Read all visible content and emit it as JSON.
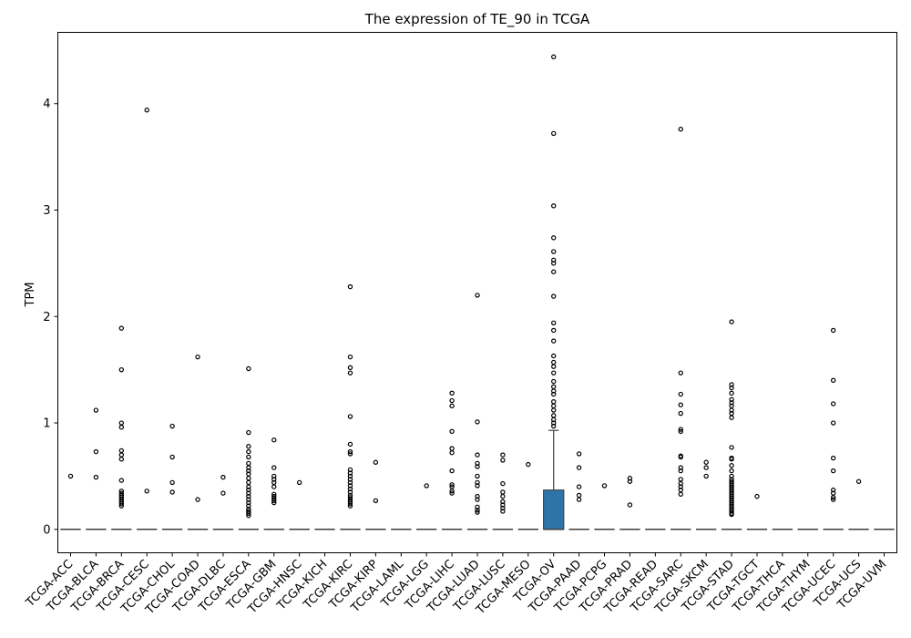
{
  "chart_data": {
    "type": "boxplot",
    "title": "The expression of TE_90 in TCGA",
    "xlabel": "",
    "ylabel": "TPM",
    "ylim": [
      -0.22,
      4.67
    ],
    "yticks": [
      0,
      1,
      2,
      3,
      4
    ],
    "grid": false,
    "legend": "none",
    "box_color": "#2e74a6",
    "categories": [
      "TCGA-ACC",
      "TCGA-BLCA",
      "TCGA-BRCA",
      "TCGA-CESC",
      "TCGA-CHOL",
      "TCGA-COAD",
      "TCGA-DLBC",
      "TCGA-ESCA",
      "TCGA-GBM",
      "TCGA-HNSC",
      "TCGA-KICH",
      "TCGA-KIRC",
      "TCGA-KIRP",
      "TCGA-LAML",
      "TCGA-LGG",
      "TCGA-LIHC",
      "TCGA-LUAD",
      "TCGA-LUSC",
      "TCGA-MESO",
      "TCGA-OV",
      "TCGA-PAAD",
      "TCGA-PCPG",
      "TCGA-PRAD",
      "TCGA-READ",
      "TCGA-SARC",
      "TCGA-SKCM",
      "TCGA-STAD",
      "TCGA-TGCT",
      "TCGA-THCA",
      "TCGA-THYM",
      "TCGA-UCEC",
      "TCGA-UCS",
      "TCGA-UVM"
    ],
    "series": [
      {
        "category": "TCGA-ACC",
        "q1": 0,
        "median": 0,
        "q3": 0,
        "whisker_low": 0,
        "whisker_high": 0,
        "outliers": [
          0.5
        ]
      },
      {
        "category": "TCGA-BLCA",
        "q1": 0,
        "median": 0,
        "q3": 0,
        "whisker_low": 0,
        "whisker_high": 0,
        "outliers": [
          1.12,
          0.73,
          0.49
        ]
      },
      {
        "category": "TCGA-BRCA",
        "q1": 0,
        "median": 0,
        "q3": 0,
        "whisker_low": 0,
        "whisker_high": 0,
        "outliers": [
          1.89,
          1.5,
          1.0,
          0.96,
          0.74,
          0.7,
          0.66,
          0.46,
          0.36,
          0.34,
          0.32,
          0.3,
          0.28,
          0.26,
          0.24,
          0.22
        ]
      },
      {
        "category": "TCGA-CESC",
        "q1": 0,
        "median": 0,
        "q3": 0,
        "whisker_low": 0,
        "whisker_high": 0,
        "outliers": [
          3.94,
          0.36
        ]
      },
      {
        "category": "TCGA-CHOL",
        "q1": 0,
        "median": 0,
        "q3": 0,
        "whisker_low": 0,
        "whisker_high": 0,
        "outliers": [
          0.97,
          0.68,
          0.44,
          0.35
        ]
      },
      {
        "category": "TCGA-COAD",
        "q1": 0,
        "median": 0,
        "q3": 0,
        "whisker_low": 0,
        "whisker_high": 0,
        "outliers": [
          1.62,
          0.28
        ]
      },
      {
        "category": "TCGA-DLBC",
        "q1": 0,
        "median": 0,
        "q3": 0,
        "whisker_low": 0,
        "whisker_high": 0,
        "outliers": [
          0.49,
          0.34
        ]
      },
      {
        "category": "TCGA-ESCA",
        "q1": 0,
        "median": 0,
        "q3": 0,
        "whisker_low": 0,
        "whisker_high": 0,
        "outliers": [
          1.51,
          0.91,
          0.78,
          0.73,
          0.68,
          0.62,
          0.58,
          0.55,
          0.52,
          0.48,
          0.44,
          0.4,
          0.37,
          0.34,
          0.31,
          0.28,
          0.25,
          0.22,
          0.19,
          0.17,
          0.15,
          0.13
        ]
      },
      {
        "category": "TCGA-GBM",
        "q1": 0,
        "median": 0,
        "q3": 0,
        "whisker_low": 0,
        "whisker_high": 0,
        "outliers": [
          0.84,
          0.58,
          0.5,
          0.47,
          0.44,
          0.4,
          0.33,
          0.31,
          0.29,
          0.27,
          0.25
        ]
      },
      {
        "category": "TCGA-HNSC",
        "q1": 0,
        "median": 0,
        "q3": 0,
        "whisker_low": 0,
        "whisker_high": 0,
        "outliers": [
          0.44
        ]
      },
      {
        "category": "TCGA-KICH",
        "q1": 0,
        "median": 0,
        "q3": 0,
        "whisker_low": 0,
        "whisker_high": 0,
        "outliers": []
      },
      {
        "category": "TCGA-KIRC",
        "q1": 0,
        "median": 0,
        "q3": 0,
        "whisker_low": 0,
        "whisker_high": 0,
        "outliers": [
          2.28,
          1.62,
          1.52,
          1.47,
          1.06,
          0.8,
          0.73,
          0.71,
          0.56,
          0.53,
          0.5,
          0.47,
          0.44,
          0.41,
          0.38,
          0.35,
          0.32,
          0.3,
          0.28,
          0.26,
          0.24,
          0.22
        ]
      },
      {
        "category": "TCGA-KIRP",
        "q1": 0,
        "median": 0,
        "q3": 0,
        "whisker_low": 0,
        "whisker_high": 0,
        "outliers": [
          0.63,
          0.27
        ]
      },
      {
        "category": "TCGA-LAML",
        "q1": 0,
        "median": 0,
        "q3": 0,
        "whisker_low": 0,
        "whisker_high": 0,
        "outliers": []
      },
      {
        "category": "TCGA-LGG",
        "q1": 0,
        "median": 0,
        "q3": 0,
        "whisker_low": 0,
        "whisker_high": 0,
        "outliers": [
          0.41
        ]
      },
      {
        "category": "TCGA-LIHC",
        "q1": 0,
        "median": 0,
        "q3": 0,
        "whisker_low": 0,
        "whisker_high": 0,
        "outliers": [
          1.28,
          1.21,
          1.16,
          0.92,
          0.76,
          0.72,
          0.55,
          0.42,
          0.4,
          0.36,
          0.34
        ]
      },
      {
        "category": "TCGA-LUAD",
        "q1": 0,
        "median": 0,
        "q3": 0,
        "whisker_low": 0,
        "whisker_high": 0,
        "outliers": [
          2.2,
          1.01,
          0.7,
          0.62,
          0.59,
          0.5,
          0.44,
          0.41,
          0.31,
          0.28,
          0.21,
          0.18,
          0.16
        ]
      },
      {
        "category": "TCGA-LUSC",
        "q1": 0,
        "median": 0,
        "q3": 0,
        "whisker_low": 0,
        "whisker_high": 0,
        "outliers": [
          0.7,
          0.65,
          0.43,
          0.35,
          0.31,
          0.26,
          0.23,
          0.2,
          0.17
        ]
      },
      {
        "category": "TCGA-MESO",
        "q1": 0,
        "median": 0,
        "q3": 0,
        "whisker_low": 0,
        "whisker_high": 0,
        "outliers": [
          0.61
        ]
      },
      {
        "category": "TCGA-OV",
        "q1": 0,
        "median": 0,
        "q3": 0.37,
        "whisker_low": 0,
        "whisker_high": 0.93,
        "outliers": [
          4.44,
          3.72,
          3.04,
          2.74,
          2.61,
          2.53,
          2.5,
          2.42,
          2.19,
          1.94,
          1.87,
          1.77,
          1.63,
          1.57,
          1.53,
          1.47,
          1.39,
          1.34,
          1.3,
          1.27,
          1.2,
          1.16,
          1.12,
          1.07,
          1.03,
          1.0,
          0.97
        ]
      },
      {
        "category": "TCGA-PAAD",
        "q1": 0,
        "median": 0,
        "q3": 0,
        "whisker_low": 0,
        "whisker_high": 0,
        "outliers": [
          0.71,
          0.58,
          0.4,
          0.32,
          0.28
        ]
      },
      {
        "category": "TCGA-PCPG",
        "q1": 0,
        "median": 0,
        "q3": 0,
        "whisker_low": 0,
        "whisker_high": 0,
        "outliers": [
          0.41
        ]
      },
      {
        "category": "TCGA-PRAD",
        "q1": 0,
        "median": 0,
        "q3": 0,
        "whisker_low": 0,
        "whisker_high": 0,
        "outliers": [
          0.48,
          0.45,
          0.23
        ]
      },
      {
        "category": "TCGA-READ",
        "q1": 0,
        "median": 0,
        "q3": 0,
        "whisker_low": 0,
        "whisker_high": 0,
        "outliers": []
      },
      {
        "category": "TCGA-SARC",
        "q1": 0,
        "median": 0,
        "q3": 0,
        "whisker_low": 0,
        "whisker_high": 0,
        "outliers": [
          3.76,
          1.47,
          1.27,
          1.17,
          1.09,
          0.94,
          0.92,
          0.69,
          0.68,
          0.58,
          0.55,
          0.47,
          0.43,
          0.4,
          0.37,
          0.33
        ]
      },
      {
        "category": "TCGA-SKCM",
        "q1": 0,
        "median": 0,
        "q3": 0,
        "whisker_low": 0,
        "whisker_high": 0,
        "outliers": [
          0.63,
          0.58,
          0.5
        ]
      },
      {
        "category": "TCGA-STAD",
        "q1": 0,
        "median": 0,
        "q3": 0,
        "whisker_low": 0,
        "whisker_high": 0,
        "outliers": [
          1.95,
          1.36,
          1.33,
          1.28,
          1.22,
          1.19,
          1.16,
          1.12,
          1.09,
          1.05,
          0.77,
          0.67,
          0.66,
          0.6,
          0.55,
          0.5,
          0.47,
          0.45,
          0.43,
          0.41,
          0.39,
          0.37,
          0.35,
          0.33,
          0.31,
          0.29,
          0.27,
          0.25,
          0.23,
          0.21,
          0.19,
          0.17,
          0.15,
          0.14
        ]
      },
      {
        "category": "TCGA-TGCT",
        "q1": 0,
        "median": 0,
        "q3": 0,
        "whisker_low": 0,
        "whisker_high": 0,
        "outliers": [
          0.31
        ]
      },
      {
        "category": "TCGA-THCA",
        "q1": 0,
        "median": 0,
        "q3": 0,
        "whisker_low": 0,
        "whisker_high": 0,
        "outliers": []
      },
      {
        "category": "TCGA-THYM",
        "q1": 0,
        "median": 0,
        "q3": 0,
        "whisker_low": 0,
        "whisker_high": 0,
        "outliers": []
      },
      {
        "category": "TCGA-UCEC",
        "q1": 0,
        "median": 0,
        "q3": 0,
        "whisker_low": 0,
        "whisker_high": 0,
        "outliers": [
          1.87,
          1.4,
          1.18,
          1.0,
          0.67,
          0.55,
          0.37,
          0.34,
          0.3,
          0.28
        ]
      },
      {
        "category": "TCGA-UCS",
        "q1": 0,
        "median": 0,
        "q3": 0,
        "whisker_low": 0,
        "whisker_high": 0,
        "outliers": [
          0.45
        ]
      },
      {
        "category": "TCGA-UVM",
        "q1": 0,
        "median": 0,
        "q3": 0,
        "whisker_low": 0,
        "whisker_high": 0,
        "outliers": []
      }
    ]
  }
}
